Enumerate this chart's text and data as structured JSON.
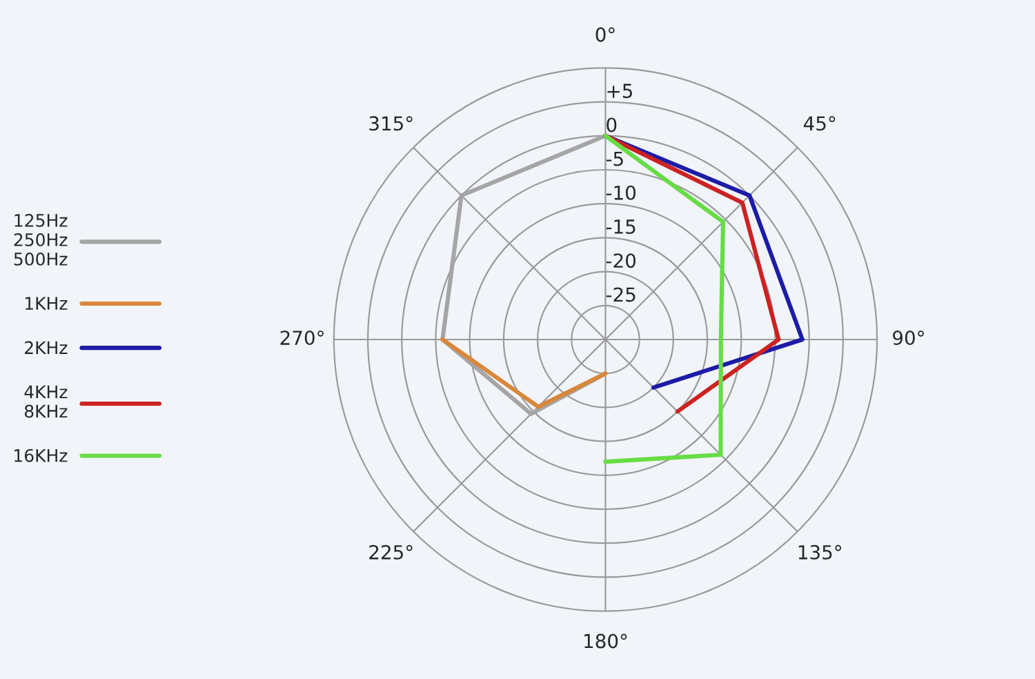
{
  "chart_data": {
    "type": "radar",
    "categories": [
      "0°",
      "45°",
      "90°",
      "135°",
      "180°",
      "225°",
      "270°",
      "315°"
    ],
    "series": [
      {
        "name": "125Hz\n250Hz\n500Hz",
        "color": "#a5a5a5",
        "values": [
          0,
          null,
          null,
          null,
          -25,
          -14.5,
          -6,
          0
        ]
      },
      {
        "name": "1KHz",
        "color": "#d9873a",
        "values": [
          null,
          null,
          null,
          null,
          -25,
          -16,
          -6,
          null
        ]
      },
      {
        "name": "2KHz",
        "color": "#1c1ca6",
        "values": [
          0,
          0,
          -1,
          -20,
          null,
          null,
          null,
          null
        ]
      },
      {
        "name": "4KHz\n8KHz",
        "color": "#cc2222",
        "values": [
          0,
          -1.5,
          -4.5,
          -15,
          null,
          null,
          null,
          null
        ]
      },
      {
        "name": "16KHz",
        "color": "#66dd44",
        "values": [
          0,
          -5.5,
          -13,
          -6,
          -12,
          null,
          null,
          null
        ]
      }
    ],
    "ylim": [
      -30,
      10
    ],
    "yticks": [
      {
        "value": 5,
        "label": "+5"
      },
      0,
      -5,
      -10,
      -15,
      -20,
      -25
    ],
    "grid": true,
    "legend": "left"
  }
}
